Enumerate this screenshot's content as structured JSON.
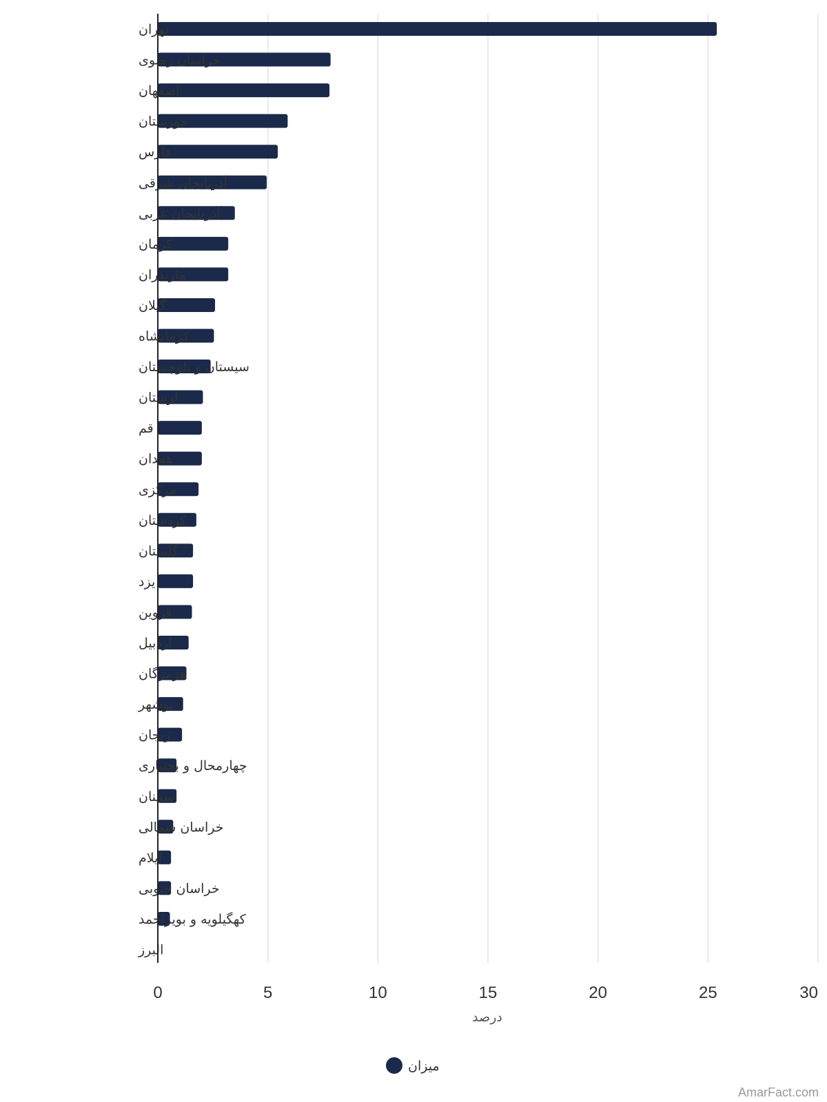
{
  "chart_data": {
    "type": "bar",
    "orientation": "horizontal",
    "categories": [
      "تهران",
      "خراسان رضوی",
      "اصفهان",
      "خوزستان",
      "فارس",
      "آذربایجان شرقی",
      "آذربایجان غربی",
      "کرمان",
      "مازندران",
      "گیلان",
      "کرمانشاه",
      "سیستان و بلوچستان",
      "لرستان",
      "قم",
      "همدان",
      "مرکزی",
      "کردستان",
      "گلستان",
      "یزد",
      "قزوین",
      "اردبیل",
      "هرمزگان",
      "بوشهر",
      "زنجان",
      "چهارمحال و بختیاری",
      "سمنان",
      "خراسان شمالی",
      "ایلام",
      "خراسان جنوبی",
      "کهگیلویه و بویراحمد",
      "البرز"
    ],
    "series": [
      {
        "name": "میزان",
        "color": "#1b2a4a",
        "values": [
          25.4,
          7.85,
          7.8,
          5.9,
          5.45,
          4.95,
          3.5,
          3.2,
          3.2,
          2.6,
          2.55,
          2.4,
          2.05,
          2.0,
          2.0,
          1.85,
          1.75,
          1.6,
          1.6,
          1.55,
          1.4,
          1.3,
          1.15,
          1.1,
          0.85,
          0.85,
          0.7,
          0.6,
          0.6,
          0.55,
          0
        ]
      }
    ],
    "xlabel": "درصد",
    "xlim": [
      0,
      30
    ],
    "xticks": [
      0,
      5,
      10,
      15,
      20,
      25,
      30
    ],
    "grid": "vertical",
    "legend": "bottom-center"
  },
  "credit": "AmarFact.com"
}
